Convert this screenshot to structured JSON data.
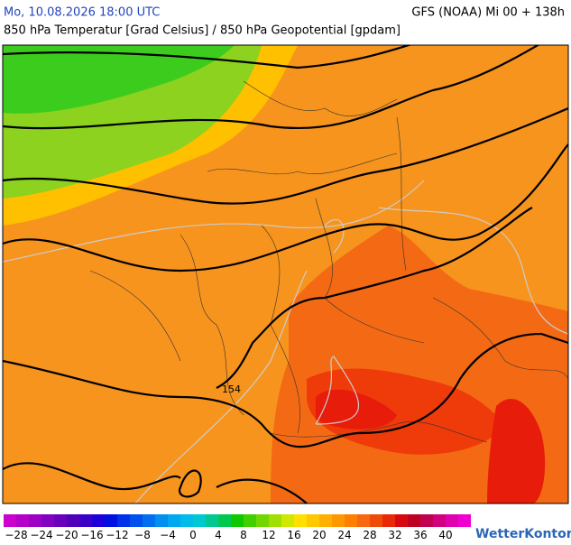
{
  "header": {
    "left": "Mo, 10.08.2026 18:00 UTC",
    "right": "GFS (NOAA) Mi 00 + 138h",
    "subtitle": "850 hPa Temperatur [Grad Celsius] / 850 hPa Geopotential [gpdam]"
  },
  "map": {
    "contour_label": "154"
  },
  "legend": {
    "ticks": [
      "−28",
      "−24",
      "−20",
      "−16",
      "−12",
      "−8",
      "−4",
      "0",
      "4",
      "8",
      "12",
      "16",
      "20",
      "24",
      "28",
      "32",
      "36",
      "40"
    ]
  },
  "brand": "WetterKontor"
}
